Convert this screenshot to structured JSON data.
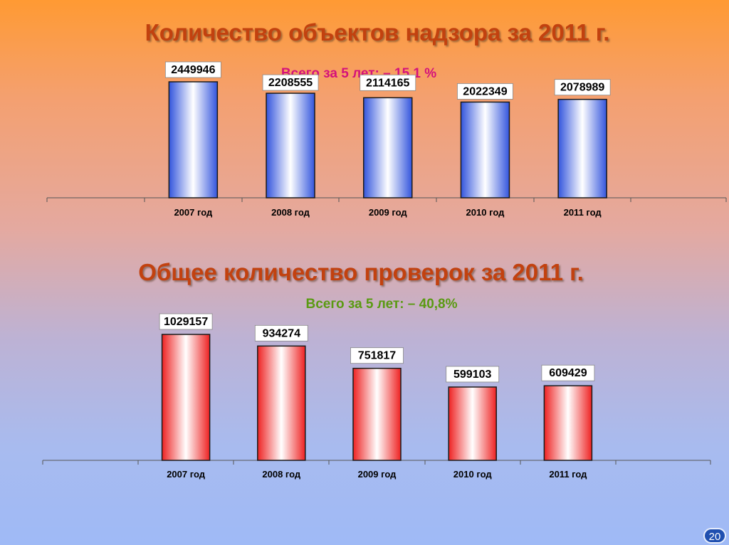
{
  "chart_data": [
    {
      "type": "bar",
      "title": "Количество объектов надзора за 2011 г.",
      "subtitle": "Всего за 5 лет: – 15,1 %",
      "categories": [
        "2007 год",
        "2008 год",
        "2009 год",
        "2010 год",
        "2011 год"
      ],
      "values": [
        2449946,
        2208555,
        2114165,
        2022349,
        2078989
      ],
      "data_labels": [
        "2449946",
        "2208555",
        "2114165",
        "2022349",
        "2078989"
      ],
      "ylim": [
        0,
        2600000
      ],
      "colors": {
        "edge": "#3355dd",
        "center": "#ffffff",
        "border": "#1a1a1a"
      },
      "subtitle_color": "#d4127a"
    },
    {
      "type": "bar",
      "title": "Общее количество проверок за 2011 г.",
      "subtitle": "Всего за 5 лет: – 40,8%",
      "categories": [
        "2007 год",
        "2008 год",
        "2009 год",
        "2010 год",
        "2011 год"
      ],
      "values": [
        1029157,
        934274,
        751817,
        599103,
        609429
      ],
      "data_labels": [
        "1029157",
        "934274",
        "751817",
        "599103",
        "609429"
      ],
      "ylim": [
        0,
        1100000
      ],
      "colors": {
        "edge": "#ee2222",
        "center": "#ffffff",
        "border": "#1a1a1a"
      },
      "subtitle_color": "#5a9a12"
    }
  ],
  "page_number": "20",
  "title_color": "#c2410f"
}
